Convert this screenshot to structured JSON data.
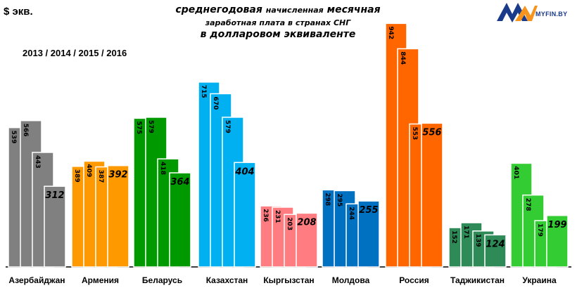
{
  "header": {
    "unit": "$ экв.",
    "years": "2013 / 2014 / 2015 / 2016",
    "title_line1_a": "среднегодовая",
    "title_line1_b": "начисленная",
    "title_line1_c": "месячная",
    "title_line2": "заработная плата в странах СНГ",
    "title_line3": "в долларовом эквиваленте"
  },
  "logo": {
    "text": "MYFIN.BY",
    "colors": {
      "orange": "#f7941d",
      "blue": "#1a3a8a"
    }
  },
  "chart_data": {
    "type": "bar",
    "title": "среднегодовая начисленная месячная заработная плата в странах СНГ в долларовом эквиваленте",
    "ylabel": "$ экв.",
    "series_years": [
      "2013",
      "2014",
      "2015",
      "2016"
    ],
    "ylim": [
      0,
      1000
    ],
    "grid": false,
    "groups": [
      {
        "country": "Азербайджан",
        "values": [
          539,
          566,
          443,
          312
        ],
        "color": "#808080"
      },
      {
        "country": "Армения",
        "values": [
          389,
          409,
          387,
          392
        ],
        "color": "#ff9900"
      },
      {
        "country": "Беларусь",
        "values": [
          575,
          579,
          418,
          364
        ],
        "color": "#009900"
      },
      {
        "country": "Казахстан",
        "values": [
          715,
          670,
          579,
          404
        ],
        "color": "#00b0f0"
      },
      {
        "country": "Кыргызстан",
        "values": [
          236,
          231,
          203,
          208
        ],
        "color": "#ff7c80"
      },
      {
        "country": "Молдова",
        "values": [
          298,
          295,
          244,
          255
        ],
        "color": "#0070c0"
      },
      {
        "country": "Россия",
        "values": [
          942,
          844,
          553,
          556
        ],
        "color": "#ff6600"
      },
      {
        "country": "Таджикистан",
        "values": [
          152,
          171,
          139,
          124
        ],
        "color": "#2e8b57"
      },
      {
        "country": "Украина",
        "values": [
          401,
          278,
          179,
          199
        ],
        "color": "#33cc33"
      }
    ]
  }
}
